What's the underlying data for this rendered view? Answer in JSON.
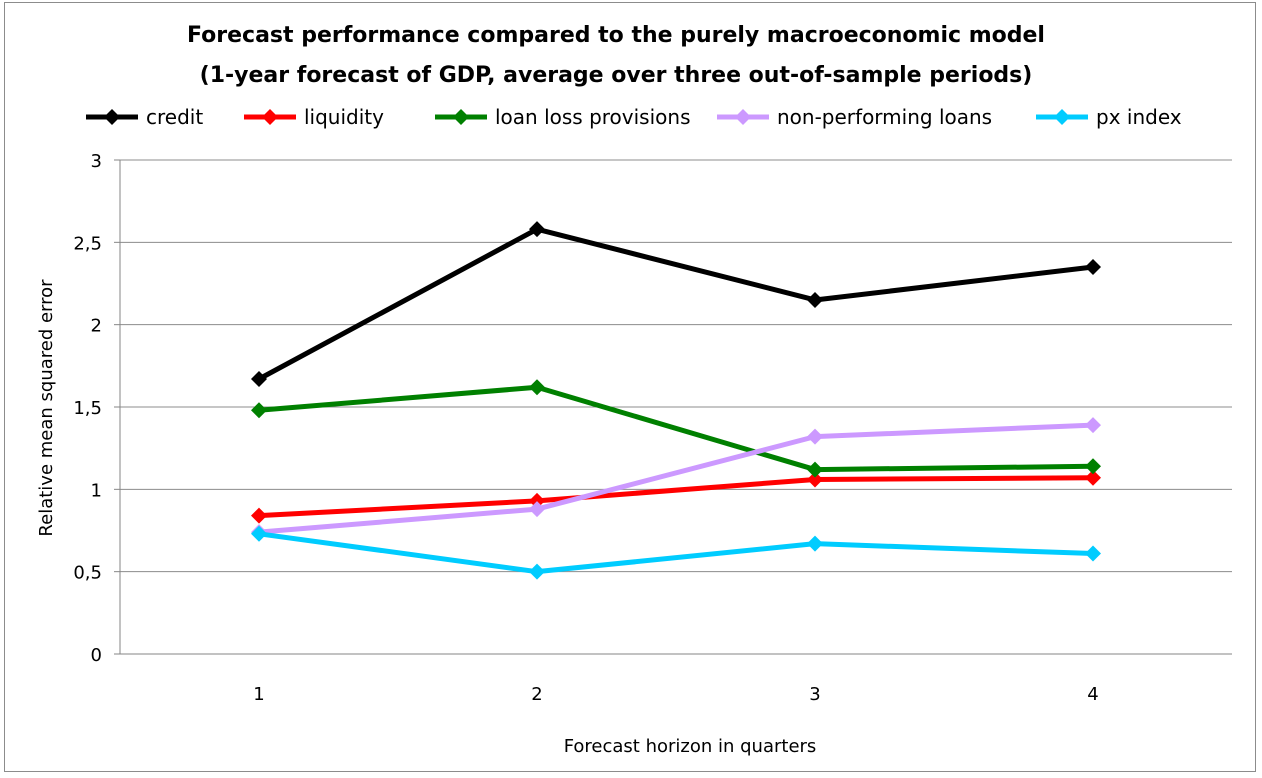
{
  "chart_data": {
    "type": "line",
    "title": "Forecast performance compared to the purely macroeconomic model",
    "subtitle": "(1-year forecast of GDP, average over three out-of-sample periods)",
    "xlabel": "Forecast horizon in quarters",
    "ylabel": "Relative mean squared error",
    "categories": [
      "1",
      "2",
      "3",
      "4"
    ],
    "ylim": [
      0,
      3
    ],
    "yticks": [
      0,
      0.5,
      1,
      1.5,
      2,
      2.5,
      3
    ],
    "ytick_labels": [
      "0",
      "0,5",
      "1",
      "1,5",
      "2",
      "2,5",
      "3"
    ],
    "grid": true,
    "legend_position": "top",
    "series": [
      {
        "name": "credit",
        "color": "#000000",
        "values": [
          1.67,
          2.58,
          2.15,
          2.35
        ]
      },
      {
        "name": "liquidity",
        "color": "#ff0000",
        "values": [
          0.84,
          0.93,
          1.06,
          1.07
        ]
      },
      {
        "name": "loan loss provisions",
        "color": "#008000",
        "values": [
          1.48,
          1.62,
          1.12,
          1.14
        ]
      },
      {
        "name": "non-performing loans",
        "color": "#cc99ff",
        "values": [
          0.74,
          0.88,
          1.32,
          1.39
        ]
      },
      {
        "name": "px index",
        "color": "#00ccff",
        "values": [
          0.73,
          0.5,
          0.67,
          0.61
        ]
      }
    ]
  }
}
